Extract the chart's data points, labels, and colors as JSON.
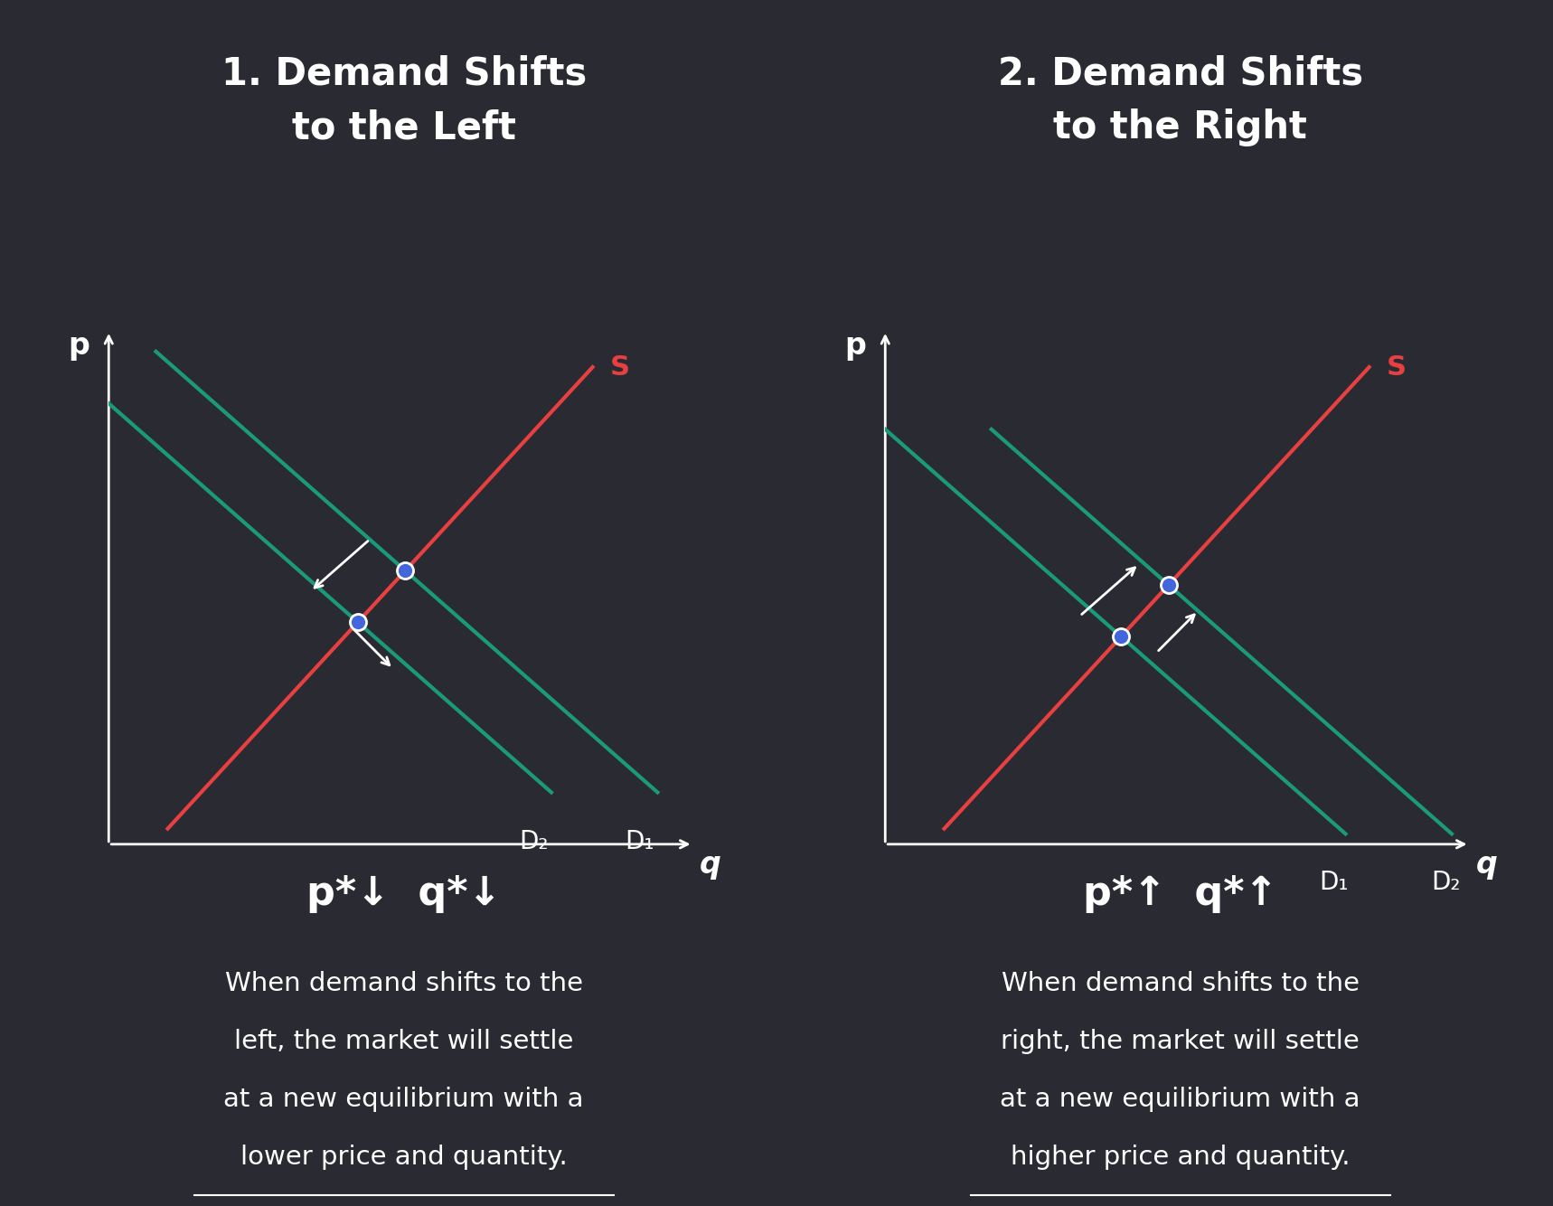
{
  "bg_color": "#2a2a32",
  "text_color": "#ffffff",
  "supply_color": "#e84040",
  "demand_color": "#1a9a7a",
  "point_color": "#4466dd",
  "point_edge_color": "#ffffff",
  "left_title_line1": "1. Demand Shifts",
  "left_title_line2": "to the Left",
  "right_title_line1": "2. Demand Shifts",
  "right_title_line2": "to the Right",
  "title_fontsize": 30,
  "label_fontsize": 22,
  "axis_label_fontsize": 24,
  "summary_fontsize": 32,
  "desc_fontsize": 21,
  "line_width": 3.0
}
